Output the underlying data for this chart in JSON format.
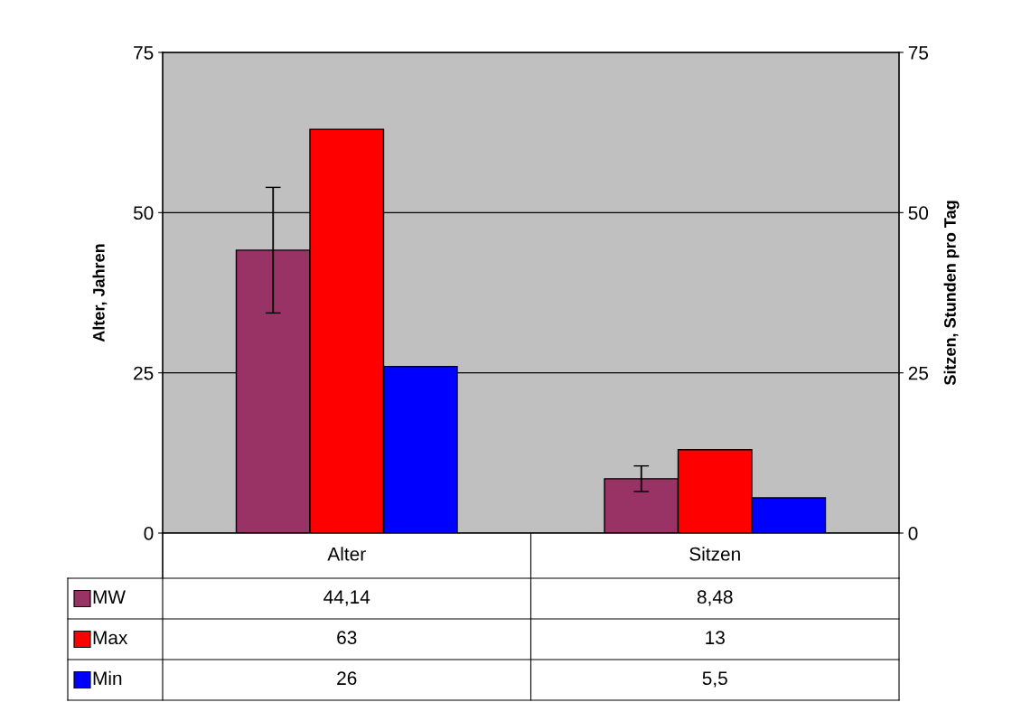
{
  "chart_data": {
    "type": "bar",
    "categories": [
      "Alter",
      "Sitzen"
    ],
    "series": [
      {
        "name": "MW",
        "color": "#993366",
        "values": [
          44.14,
          8.48
        ],
        "errors": [
          9.8,
          2
        ],
        "value_labels": [
          "44,14",
          "8,48"
        ]
      },
      {
        "name": "Max",
        "color": "#ff0000",
        "values": [
          63,
          13
        ],
        "value_labels": [
          "63",
          "13"
        ]
      },
      {
        "name": "Min",
        "color": "#0000ff",
        "values": [
          26,
          5.5
        ],
        "value_labels": [
          "26",
          "5,5"
        ]
      }
    ],
    "ylabel": "Alter, Jahren",
    "y2label": "Sitzen, Stunden pro Tag",
    "ylim": [
      0,
      75
    ],
    "yticks": [
      0,
      25,
      50,
      75
    ],
    "y2lim": [
      0,
      75
    ],
    "y2ticks": [
      0,
      25,
      50,
      75
    ],
    "grid": "y",
    "legend": "bottom"
  }
}
